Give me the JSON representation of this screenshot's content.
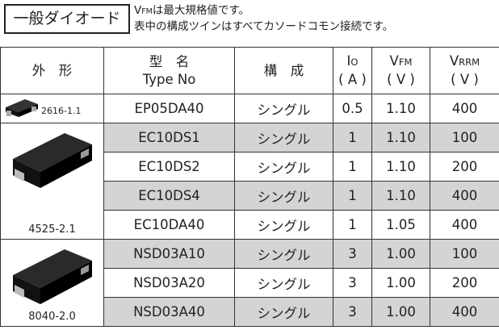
{
  "header": {
    "title": "一般ダイオード",
    "notes": [
      {
        "symbol": "V",
        "sub": "FM",
        "text": "は最大規格値です。"
      },
      {
        "text": "表中の構成ツインはすべてカソードコモン接続です。"
      }
    ]
  },
  "table": {
    "columns": [
      {
        "label": "外　形"
      },
      {
        "label": "型　名",
        "sub_label": "Type No"
      },
      {
        "label": "構　成"
      },
      {
        "symbol": "I",
        "sub": "O",
        "unit": "( A )"
      },
      {
        "symbol": "V",
        "sub": "FM",
        "unit": "( V )"
      },
      {
        "symbol": "V",
        "sub": "RRM",
        "unit": "( V )"
      }
    ],
    "rows": [
      {
        "package": "2616-1.1",
        "cells": [
          "EP05DA40",
          "シングル",
          "0.5",
          "1.10",
          "400"
        ]
      },
      {
        "package": "4525-2.1",
        "cells": [
          "EC10DS1",
          "シングル",
          "1",
          "1.10",
          "100"
        ]
      },
      {
        "cells": [
          "EC10DS2",
          "シングル",
          "1",
          "1.10",
          "200"
        ]
      },
      {
        "cells": [
          "EC10DS4",
          "シングル",
          "1",
          "1.10",
          "400"
        ]
      },
      {
        "cells": [
          "EC10DA40",
          "シングル",
          "1",
          "1.05",
          "400"
        ]
      },
      {
        "package": "8040-2.0",
        "cells": [
          "NSD03A10",
          "シングル",
          "3",
          "1.00",
          "100"
        ]
      },
      {
        "cells": [
          "NSD03A20",
          "シングル",
          "3",
          "1.00",
          "200"
        ]
      },
      {
        "cells": [
          "NSD03A40",
          "シングル",
          "3",
          "1.00",
          "400"
        ]
      }
    ]
  }
}
